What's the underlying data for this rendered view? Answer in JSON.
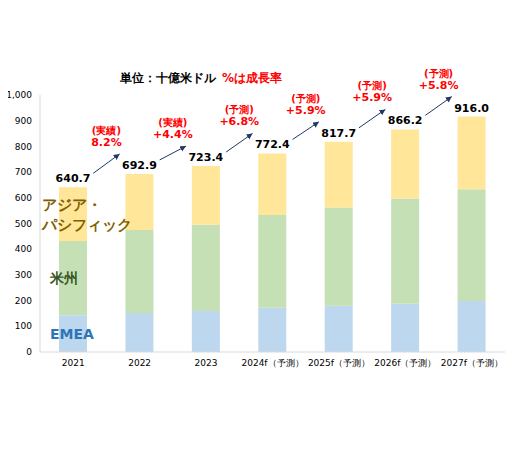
{
  "chart_data": {
    "type": "bar",
    "title": "単位：十億米ドル",
    "subtitle": "%は成長率",
    "categories": [
      "2021",
      "2022",
      "2023",
      "2024f（予測）",
      "2025f（予測）",
      "2026f（予測）",
      "2027f（予測）"
    ],
    "series": [
      {
        "name": "EMEA",
        "color": "#bdd7ee",
        "values": [
          143,
          152,
          160,
          172,
          180,
          188,
          198
        ]
      },
      {
        "name": "米州",
        "color": "#c5e0b4",
        "values": [
          289,
          323,
          335,
          361,
          382,
          409,
          435
        ]
      },
      {
        "name": "アジア・パシフィック",
        "color": "#ffe699",
        "values": [
          208.7,
          217.9,
          228.4,
          239.4,
          255.7,
          269.2,
          283.0
        ]
      }
    ],
    "totals": [
      640.7,
      692.9,
      723.4,
      772.4,
      817.7,
      866.2,
      916.0
    ],
    "total_labels": [
      "640.7",
      "692.9",
      "723.4",
      "772.4",
      "817.7",
      "866.2",
      "916.0"
    ],
    "growth_annotations": [
      {
        "status": "(実績)",
        "rate": "8.2%"
      },
      {
        "status": "(実績)",
        "rate": "+4.4%"
      },
      {
        "status": "(予測)",
        "rate": "+6.8%"
      },
      {
        "status": "(予測)",
        "rate": "+5.9%"
      },
      {
        "status": "(予測)",
        "rate": "+5.9%"
      },
      {
        "status": "(予測)",
        "rate": "+5.8%"
      }
    ],
    "ylim": [
      0,
      1000
    ],
    "yticks": [
      0,
      100,
      200,
      300,
      400,
      500,
      600,
      700,
      800,
      900,
      {
        "value": 1000,
        "label": "1,000"
      }
    ],
    "stacked": true,
    "grid": false
  }
}
